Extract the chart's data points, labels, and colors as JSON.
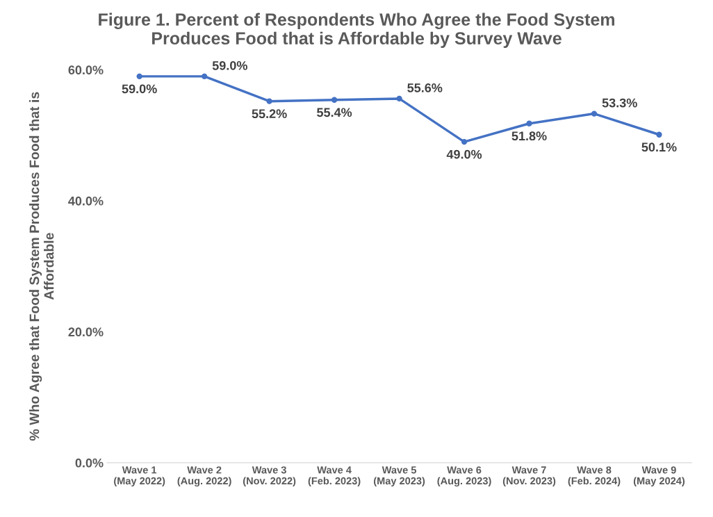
{
  "chart_data": {
    "type": "line",
    "title": "Figure 1. Percent of Respondents Who Agree the Food System\nProduces Food that is Affordable by Survey Wave",
    "ylabel": "% Who Agree that Food System Produces Food that is\nAffordable",
    "categories": [
      "Wave 1\n(May 2022)",
      "Wave 2\n(Aug. 2022)",
      "Wave 3\n(Nov. 2022)",
      "Wave 4\n(Feb. 2023)",
      "Wave 5\n(May 2023)",
      "Wave 6\n(Aug. 2023)",
      "Wave 7\n(Nov. 2023)",
      "Wave 8\n(Feb. 2024)",
      "Wave 9\n(May 2024)"
    ],
    "series": [
      {
        "color": "#4472c4",
        "values": [
          59.0,
          59.0,
          55.2,
          55.4,
          55.6,
          49.0,
          51.8,
          53.3,
          50.1
        ],
        "value_labels": [
          "59.0%",
          "59.0%",
          "55.2%",
          "55.4%",
          "55.6%",
          "49.0%",
          "51.8%",
          "53.3%",
          "50.1%"
        ]
      }
    ],
    "ylim": [
      0,
      60
    ],
    "yticks": [
      {
        "value": 0,
        "label": "0.0%"
      },
      {
        "value": 20,
        "label": "20.0%"
      },
      {
        "value": 40,
        "label": "40.0%"
      },
      {
        "value": 60,
        "label": "60.0%"
      }
    ],
    "marker": "circle",
    "line_style": "solid",
    "grid": false,
    "legend": false
  }
}
